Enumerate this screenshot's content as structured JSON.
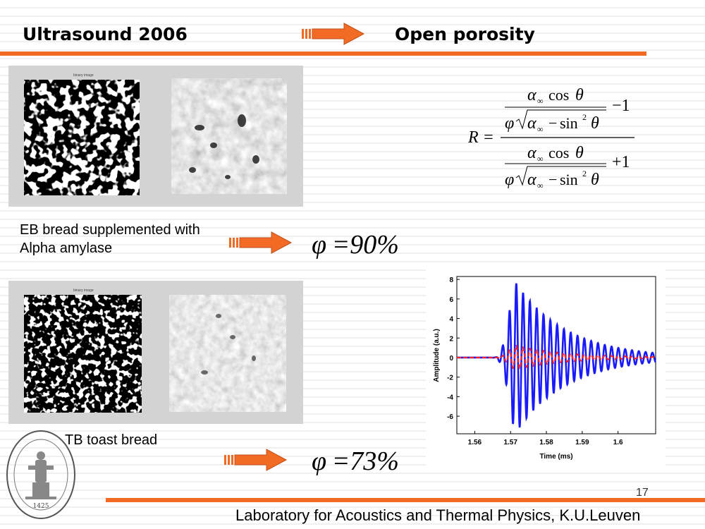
{
  "header": {
    "left_title": "Ultrasound 2006",
    "right_title": "Open porosity",
    "accent_color": "#f26b24"
  },
  "panels": {
    "top": {
      "image_caption": "binary image",
      "label_line1": "EB bread supplemented with",
      "label_line2": "Alpha amylase",
      "porosity": "=90%"
    },
    "bottom": {
      "image_caption": "binary image",
      "label": "TB toast bread",
      "porosity": "=73%"
    }
  },
  "formula": {
    "lhs": "R =",
    "minus_one": "−1",
    "plus_one": "+1"
  },
  "chart_data": {
    "type": "line",
    "xlabel": "Time (ms)",
    "ylabel": "Amplitude (a.u.)",
    "xlim": [
      1.555,
      1.6105
    ],
    "ylim": [
      -7.8,
      8.3
    ],
    "xticks": [
      "1.56",
      "1.57",
      "1.58",
      "1.59",
      "1.6"
    ],
    "yticks": [
      "8",
      "6",
      "4",
      "2",
      "0",
      "-2",
      "-4",
      "-6"
    ],
    "series": [
      {
        "color": "#1a1aff",
        "style": "solid",
        "amplitude": 7.6,
        "peak_time": 1.5716
      },
      {
        "color": "#ff2020",
        "style": "dashed",
        "amplitude": 1.2,
        "peak_time": 1.5716
      }
    ]
  },
  "logo": {
    "year": "1425"
  },
  "footer": {
    "page_number": "17",
    "text": "Laboratory for Acoustics and Thermal Physics, K.U.Leuven"
  }
}
